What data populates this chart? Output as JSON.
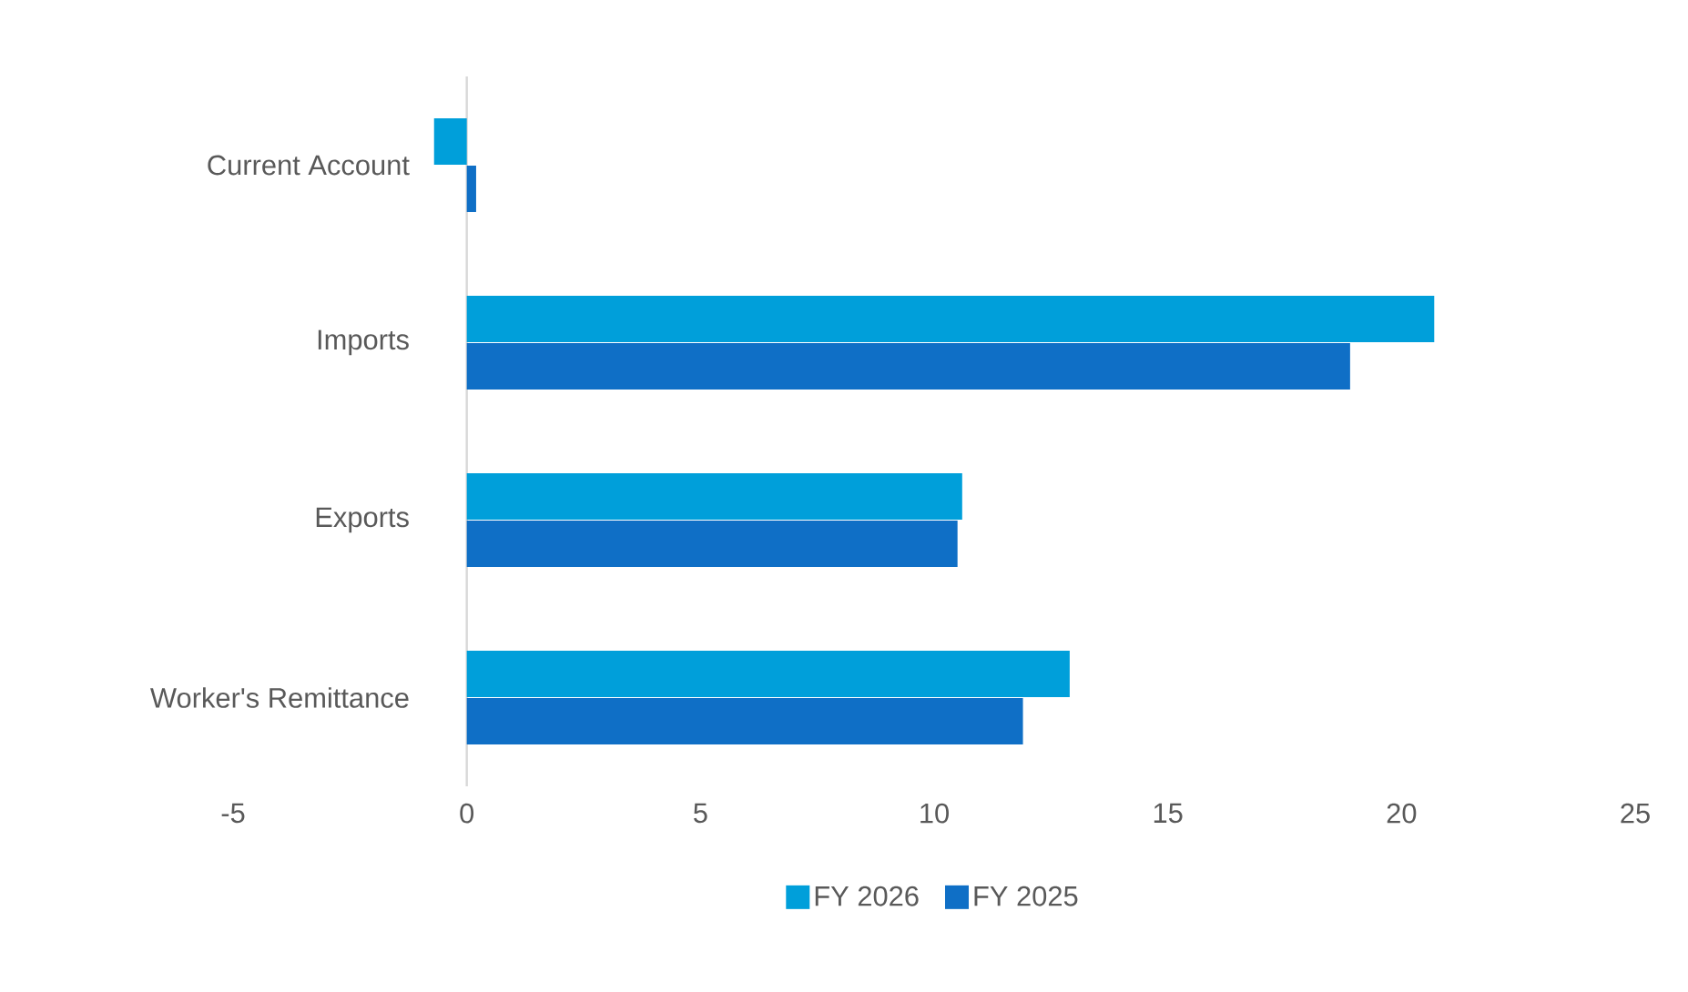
{
  "chart_data": {
    "type": "bar",
    "orientation": "horizontal",
    "categories": [
      "Current Account",
      "Imports",
      "Exports",
      "Worker's Remittance"
    ],
    "series": [
      {
        "name": "FY 2026",
        "color": "#009fda",
        "values": [
          -0.7,
          20.7,
          10.6,
          12.9
        ]
      },
      {
        "name": "FY 2025",
        "color": "#0f6fc6",
        "values": [
          0.2,
          18.9,
          10.5,
          11.9
        ]
      }
    ],
    "xlim": [
      -5,
      25
    ],
    "xticks": [
      -5,
      0,
      5,
      10,
      15,
      20,
      25
    ],
    "grid": false,
    "legend": "bottom"
  }
}
